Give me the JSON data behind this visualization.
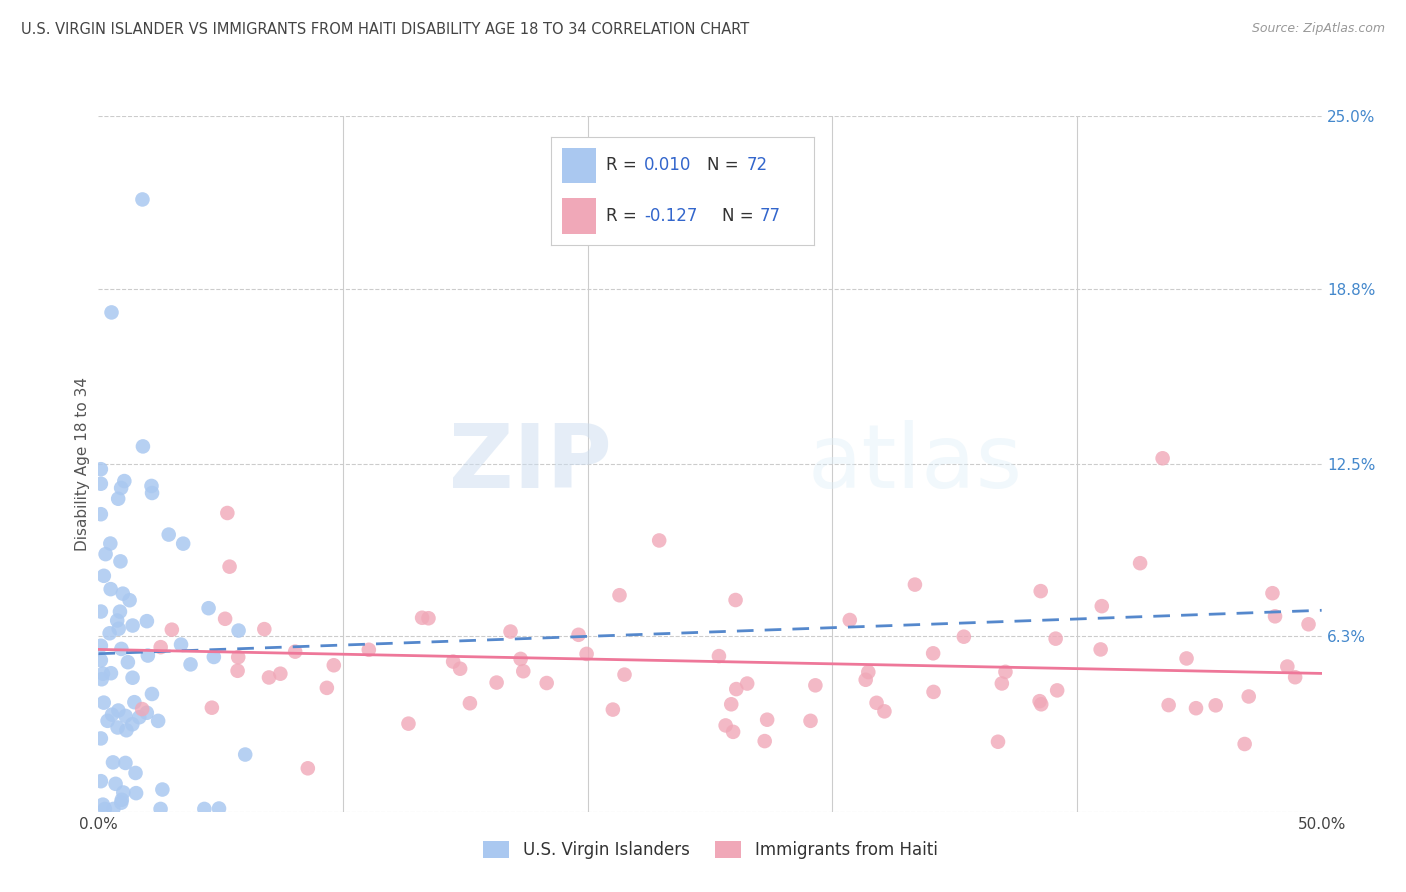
{
  "title": "U.S. VIRGIN ISLANDER VS IMMIGRANTS FROM HAITI DISABILITY AGE 18 TO 34 CORRELATION CHART",
  "source": "Source: ZipAtlas.com",
  "ylabel": "Disability Age 18 to 34",
  "xlim": [
    0.0,
    0.5
  ],
  "ylim": [
    0.0,
    0.25
  ],
  "ytick_vals": [
    0.0,
    0.063,
    0.125,
    0.188,
    0.25
  ],
  "ytick_labels": [
    "",
    "6.3%",
    "12.5%",
    "18.8%",
    "25.0%"
  ],
  "xtick_vals": [
    0.0,
    0.1,
    0.2,
    0.3,
    0.4,
    0.5
  ],
  "xtick_labels": [
    "0.0%",
    "",
    "",
    "",
    "",
    "50.0%"
  ],
  "r1": 0.01,
  "n1": 72,
  "r2": -0.127,
  "n2": 77,
  "series1_color": "#aac8f0",
  "series2_color": "#f0a8b8",
  "trend1_color": "#5588cc",
  "trend2_color": "#ee7799",
  "label1": "U.S. Virgin Islanders",
  "label2": "Immigrants from Haiti",
  "watermark_zip": "ZIP",
  "watermark_atlas": "atlas",
  "background_color": "#ffffff",
  "grid_color": "#cccccc",
  "title_color": "#444444",
  "axis_label_color": "#555555",
  "right_tick_color": "#4488cc",
  "legend_edge_color": "#cccccc",
  "seed": 12
}
